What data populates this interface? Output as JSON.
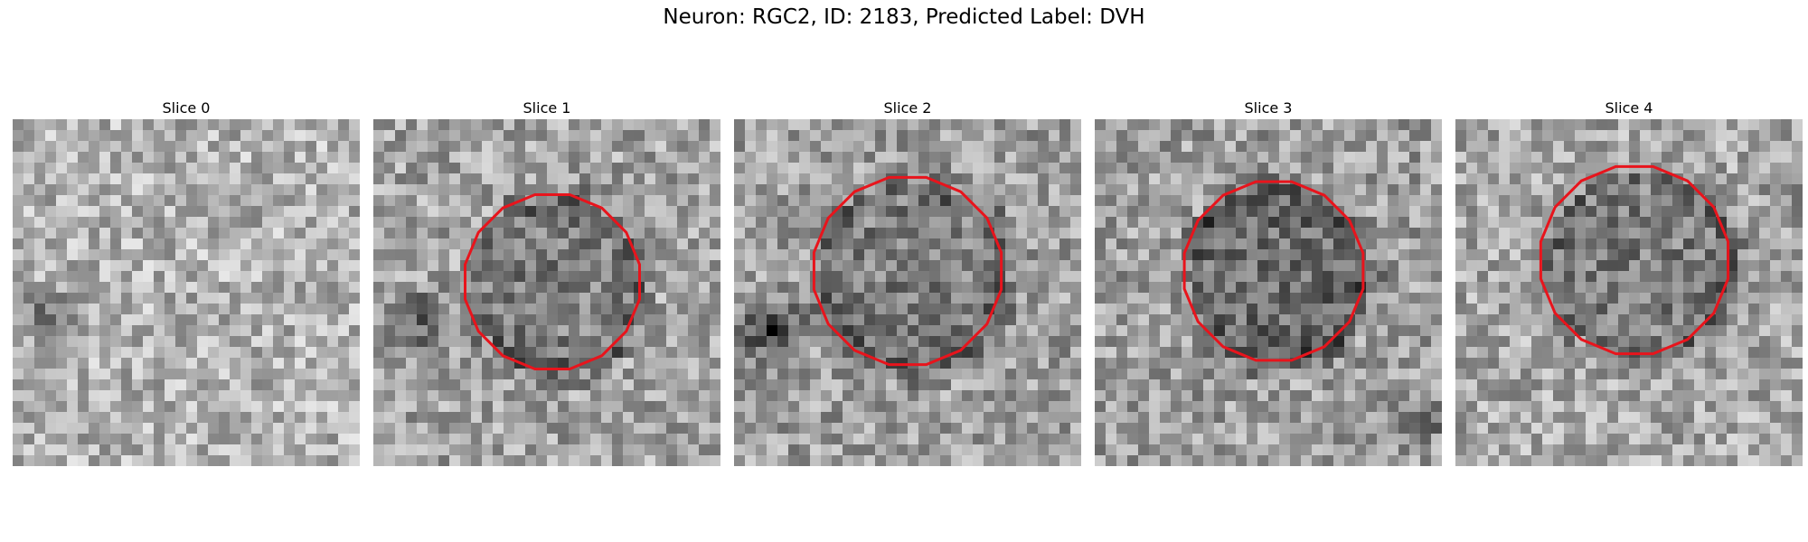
{
  "figure": {
    "title": "Neuron: RGC2, ID: 2183, Predicted Label: DVH"
  },
  "panels": [
    {
      "title": "Slice 0",
      "roi": false
    },
    {
      "title": "Slice 1",
      "roi": true
    },
    {
      "title": "Slice 2",
      "roi": true
    },
    {
      "title": "Slice 3",
      "roi": true
    },
    {
      "title": "Slice 4",
      "roi": true
    }
  ],
  "colors": {
    "roi_outline": "#e8141c",
    "background": "#ffffff"
  }
}
